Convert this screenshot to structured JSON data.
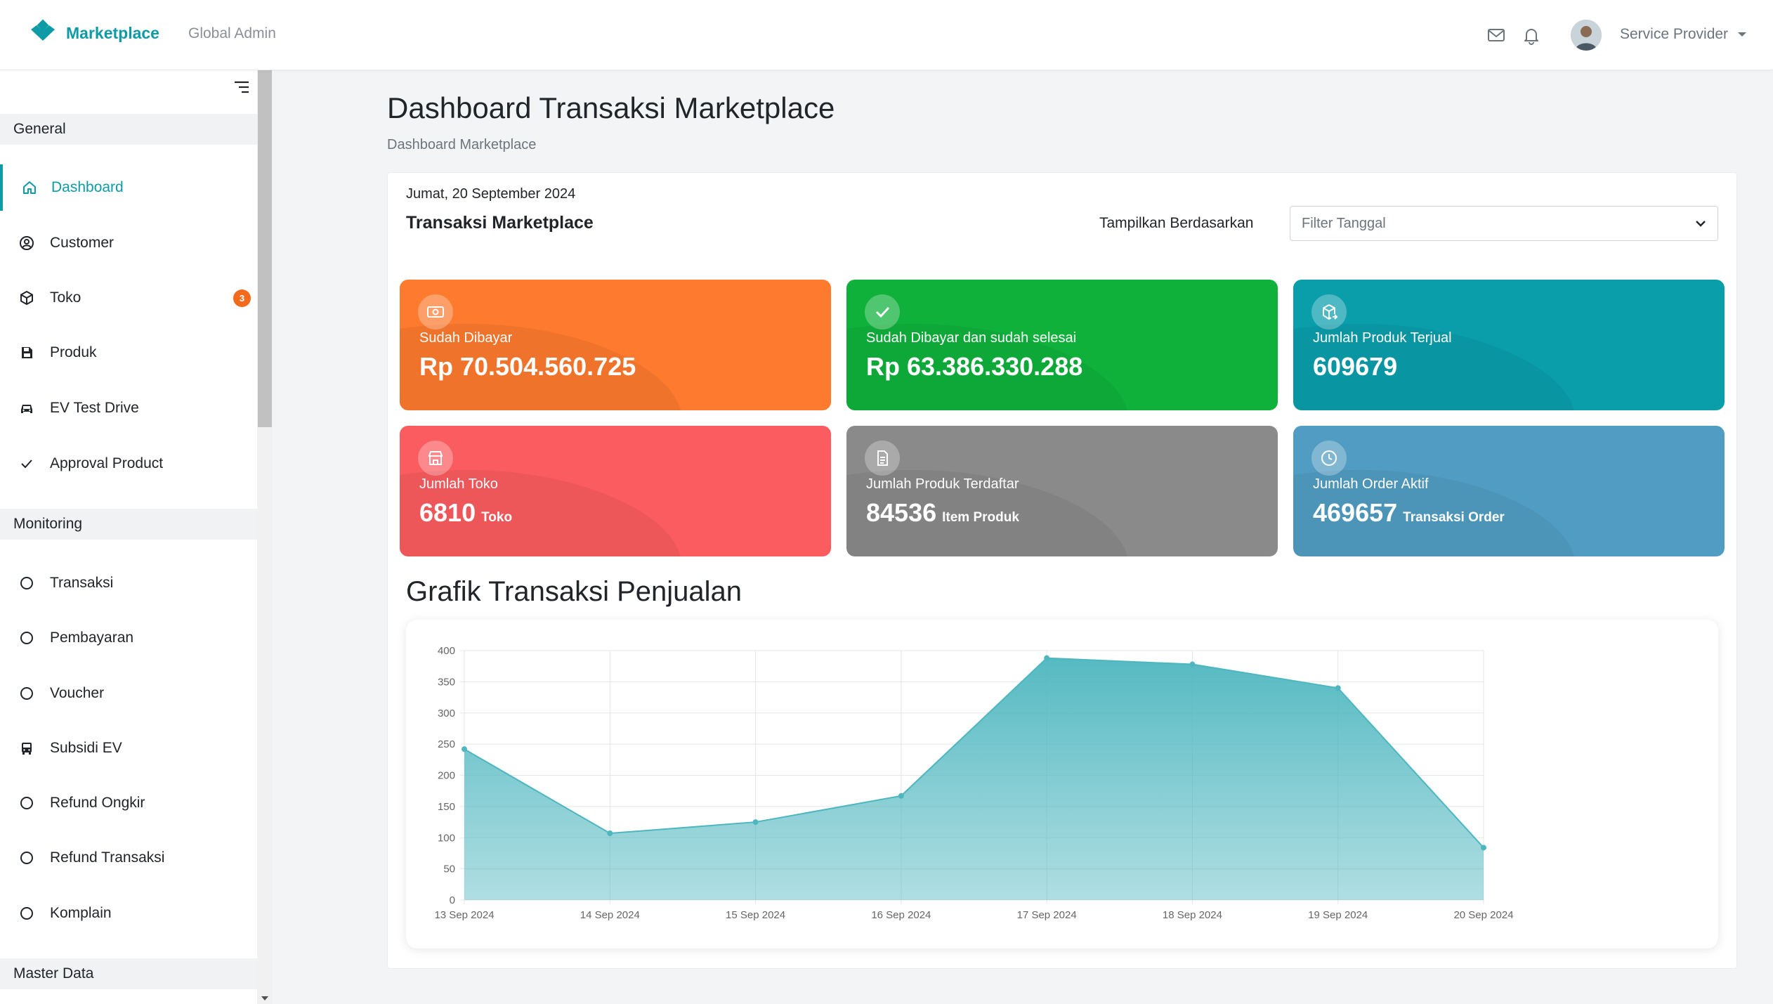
{
  "header": {
    "brand": "Marketplace",
    "subtitle": "Global Admin",
    "user_name": "Service Provider",
    "icons": [
      "envelope-icon",
      "bell-icon"
    ]
  },
  "sidebar": {
    "sections": [
      {
        "title": "General",
        "items": [
          {
            "label": "Dashboard",
            "icon": "home-icon",
            "active": true
          },
          {
            "label": "Customer",
            "icon": "user-circle-icon"
          },
          {
            "label": "Toko",
            "icon": "box-icon",
            "badge": "3"
          },
          {
            "label": "Produk",
            "icon": "save-icon"
          },
          {
            "label": "EV Test Drive",
            "icon": "car-icon"
          },
          {
            "label": "Approval Product",
            "icon": "check-icon"
          }
        ]
      },
      {
        "title": "Monitoring",
        "items": [
          {
            "label": "Transaksi",
            "icon": "circle-icon"
          },
          {
            "label": "Pembayaran",
            "icon": "circle-icon"
          },
          {
            "label": "Voucher",
            "icon": "circle-icon"
          },
          {
            "label": "Subsidi EV",
            "icon": "bus-icon"
          },
          {
            "label": "Refund Ongkir",
            "icon": "circle-icon"
          },
          {
            "label": "Refund Transaksi",
            "icon": "circle-icon"
          },
          {
            "label": "Komplain",
            "icon": "circle-icon"
          }
        ]
      },
      {
        "title": "Master Data",
        "items": []
      }
    ]
  },
  "main": {
    "page_title": "Dashboard Transaksi Marketplace",
    "breadcrumb": "Dashboard Marketplace",
    "date": "Jumat, 20 September 2024",
    "card_title": "Transaksi Marketplace",
    "filter_label": "Tampilkan Berdasarkan",
    "filter_placeholder": "Filter Tanggal",
    "stats": [
      {
        "label": "Sudah Dibayar",
        "value": "Rp 70.504.560.725",
        "unit": "",
        "color": "#fd7a2f",
        "icon": "money-icon"
      },
      {
        "label": "Sudah Dibayar dan sudah selesai",
        "value": "Rp 63.386.330.288",
        "unit": "",
        "color": "#0fb13b",
        "icon": "check-icon"
      },
      {
        "label": "Jumlah Produk Terjual",
        "value": "609679",
        "unit": "",
        "color": "#0a9eab",
        "icon": "box-arrow-icon"
      },
      {
        "label": "Jumlah Toko",
        "value": "6810",
        "unit": "Toko",
        "color": "#fb5c5f",
        "icon": "store-icon"
      },
      {
        "label": "Jumlah Produk Terdaftar",
        "value": "84536",
        "unit": "Item Produk",
        "color": "#8a8a8a",
        "icon": "document-icon"
      },
      {
        "label": "Jumlah Order Aktif",
        "value": "469657",
        "unit": "Transaksi Order",
        "color": "#519cc2",
        "icon": "clock-icon"
      }
    ],
    "chart_title": "Grafik Transaksi Penjualan"
  },
  "chart_data": {
    "type": "area",
    "title": "Grafik Transaksi Penjualan",
    "categories": [
      "13 Sep 2024",
      "14 Sep 2024",
      "15 Sep 2024",
      "16 Sep 2024",
      "17 Sep 2024",
      "18 Sep 2024",
      "19 Sep 2024",
      "20 Sep 2024"
    ],
    "values": [
      242,
      107,
      125,
      167,
      388,
      378,
      340,
      84
    ],
    "ylim": [
      0,
      400
    ],
    "yticks": [
      0,
      50,
      100,
      150,
      200,
      250,
      300,
      350,
      400
    ],
    "grid": true,
    "color": "#4db6bf"
  }
}
